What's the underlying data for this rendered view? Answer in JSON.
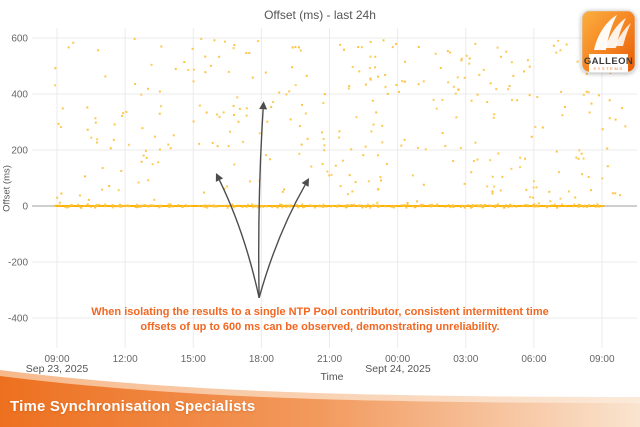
{
  "header": {
    "title": "Offset (ms) - last 24h"
  },
  "logo": {
    "primary": "GALLEON",
    "secondary": "S Y S T E M S",
    "orange_top": "#F9A13B",
    "orange_bottom": "#E8650D"
  },
  "footer": {
    "tagline": "Time Synchronisation Specialists",
    "gradient_left": "#ED701F",
    "gradient_right": "#FAE6D3"
  },
  "chart_data": {
    "type": "scatter",
    "title": "Offset (ms) - last 24h",
    "xlabel": "Time",
    "ylabel": "Offset (ms)",
    "x_ticks": [
      "09:00",
      "12:00",
      "15:00",
      "18:00",
      "21:00",
      "00:00",
      "03:00",
      "06:00",
      "09:00"
    ],
    "x_tick_hours": [
      9,
      12,
      15,
      18,
      21,
      24,
      27,
      30,
      33
    ],
    "x_date_labels": [
      {
        "tick": "09:00",
        "hour": 9,
        "label": "Sep 23, 2025"
      },
      {
        "tick": "00:00",
        "hour": 24,
        "label": "Sept 24, 2025"
      }
    ],
    "y_ticks": [
      600,
      400,
      200,
      0,
      -200,
      -400
    ],
    "ylim": [
      -500,
      635
    ],
    "xlim_hours": [
      7.9,
      34.4
    ],
    "grid": true,
    "legend_position": "none",
    "point_color": "#FDC23C",
    "zero_band_color": "#FFB300",
    "zero_axis_color": "#9E9E9E",
    "grid_color": "#EBEBEB",
    "tick_color": "#666666",
    "series": [
      {
        "name": "intermittent-offsets",
        "kind": "uniform-scatter",
        "n_points": 330,
        "x_hours": [
          8.9,
          34.2
        ],
        "y_ms": [
          8,
          600
        ],
        "seed": 7
      },
      {
        "name": "baseline-zero-cluster",
        "kind": "zero-band",
        "n_points": 300,
        "x_hours": [
          8.9,
          33.1
        ],
        "jitter_ms": 7,
        "seed": 13
      }
    ],
    "arrows": {
      "color": "#4D4D4D",
      "origin": {
        "hour": 17.9,
        "ms": -328
      },
      "tips": [
        {
          "hour": 16.0,
          "ms": 118,
          "bend": 8
        },
        {
          "hour": 18.1,
          "ms": 374,
          "bend": -4
        },
        {
          "hour": 20.1,
          "ms": 100,
          "bend": -8
        }
      ]
    },
    "annotation": {
      "line1": "When isolating the results to a single NTP Pool contributor, consistent intermittent time",
      "line2": "offsets of up to 600 ms can be observed, demonstrating unreliability.",
      "color": "#F26722"
    }
  }
}
